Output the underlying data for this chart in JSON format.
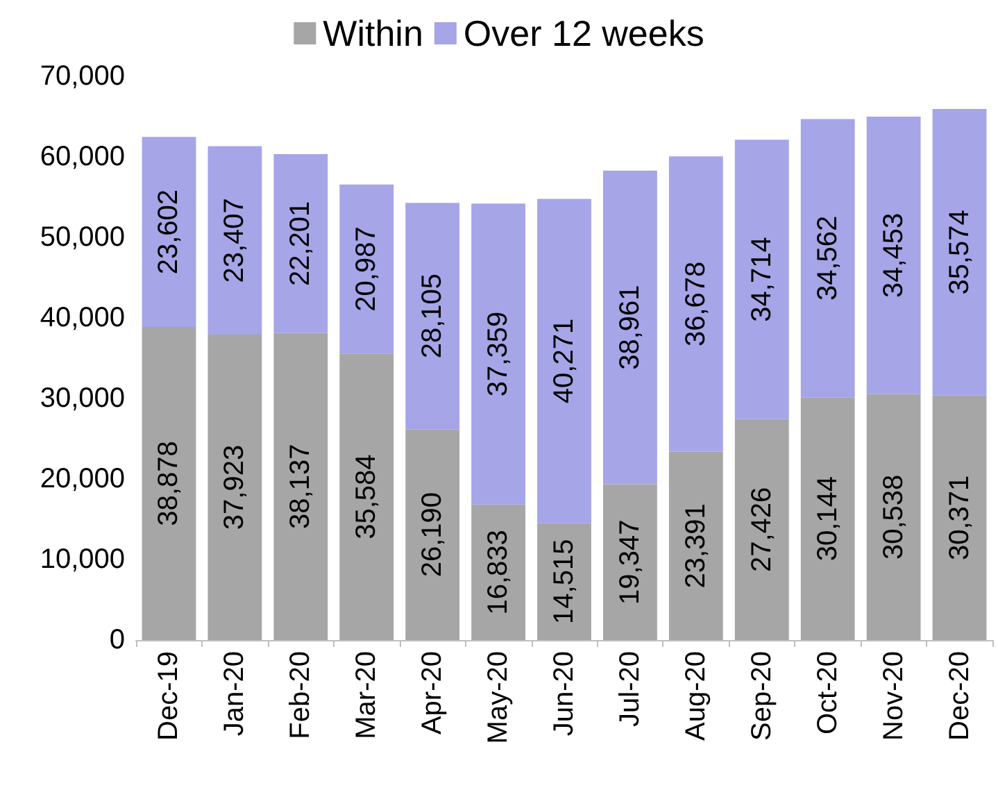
{
  "chart_data": {
    "type": "bar",
    "stacked": true,
    "categories": [
      "Dec-19",
      "Jan-20",
      "Feb-20",
      "Mar-20",
      "Apr-20",
      "May-20",
      "Jun-20",
      "Jul-20",
      "Aug-20",
      "Sep-20",
      "Oct-20",
      "Nov-20",
      "Dec-20"
    ],
    "series": [
      {
        "name": "Within",
        "color": "#a6a6a6",
        "values": [
          38878,
          37923,
          38137,
          35584,
          26190,
          16833,
          14515,
          19347,
          23391,
          27426,
          30144,
          30538,
          30371
        ],
        "value_labels": [
          "38,878",
          "37,923",
          "38,137",
          "35,584",
          "26,190",
          "16,833",
          "14,515",
          "19,347",
          "23,391",
          "27,426",
          "30,144",
          "30,538",
          "30,371"
        ]
      },
      {
        "name": "Over 12 weeks",
        "color": "#a5a5e8",
        "values": [
          23602,
          23407,
          22201,
          20987,
          28105,
          37359,
          40271,
          38961,
          36678,
          34714,
          34562,
          34453,
          35574
        ],
        "value_labels": [
          "23,602",
          "23,407",
          "22,201",
          "20,987",
          "28,105",
          "37,359",
          "40,271",
          "38,961",
          "36,678",
          "34,714",
          "34,562",
          "34,453",
          "35,574"
        ]
      }
    ],
    "ylim": [
      0,
      70000
    ],
    "yticks": [
      {
        "value": 0,
        "label": "0"
      },
      {
        "value": 10000,
        "label": "10,000"
      },
      {
        "value": 20000,
        "label": "20,000"
      },
      {
        "value": 30000,
        "label": "30,000"
      },
      {
        "value": 40000,
        "label": "40,000"
      },
      {
        "value": 50000,
        "label": "50,000"
      },
      {
        "value": 60000,
        "label": "60,000"
      },
      {
        "value": 70000,
        "label": "70,000"
      }
    ],
    "legend": "top",
    "grid": false
  }
}
